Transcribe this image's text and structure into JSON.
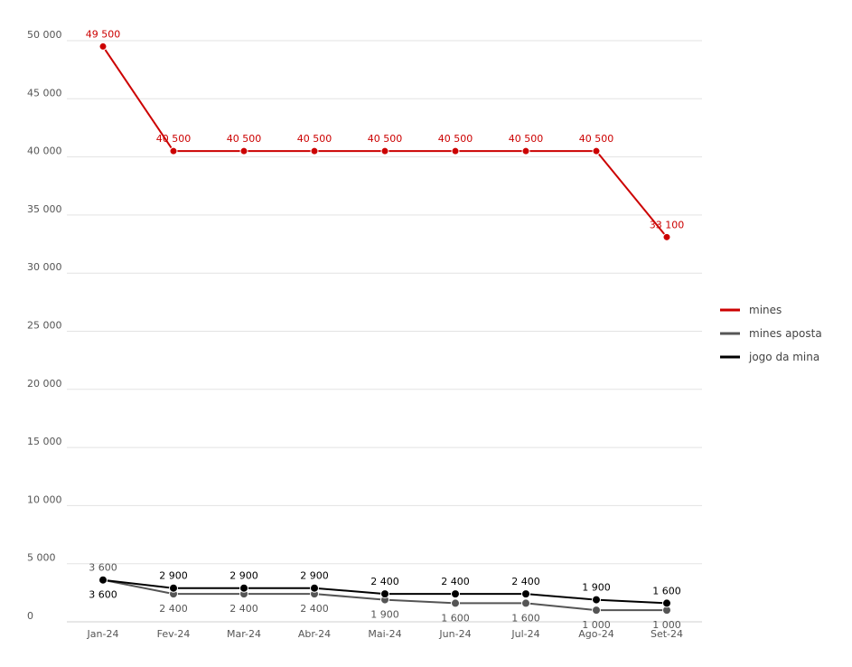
{
  "chart_data": {
    "type": "line",
    "categories": [
      "Jan-24",
      "Fev-24",
      "Mar-24",
      "Abr-24",
      "Mai-24",
      "Jun-24",
      "Jul-24",
      "Ago-24",
      "Set-24"
    ],
    "series": [
      {
        "name": "mines",
        "color": "#cc0000",
        "values": [
          49500,
          40500,
          40500,
          40500,
          40500,
          40500,
          40500,
          40500,
          33100
        ],
        "labels": [
          "49 500",
          "40 500",
          "40 500",
          "40 500",
          "40 500",
          "40 500",
          "40 500",
          "40 500",
          "33 100"
        ]
      },
      {
        "name": "mines aposta",
        "color": "#555555",
        "values": [
          3600,
          2400,
          2400,
          2400,
          1900,
          1600,
          1600,
          1000,
          1000
        ],
        "labels": [
          "3 600",
          "2 400",
          "2 400",
          "2 400",
          "1 900",
          "1 600",
          "1 600",
          "1 000",
          "1 000"
        ]
      },
      {
        "name": "jogo da mina",
        "color": "#000000",
        "values": [
          3600,
          2900,
          2900,
          2900,
          2400,
          2400,
          2400,
          1900,
          1600
        ],
        "labels": [
          "3 600",
          "2 900",
          "2 900",
          "2 900",
          "2 400",
          "2 400",
          "2 400",
          "1 900",
          "1 600"
        ]
      }
    ],
    "yticks": [
      0,
      5000,
      10000,
      15000,
      20000,
      25000,
      30000,
      35000,
      40000,
      45000,
      50000
    ],
    "ytick_labels": [
      "0",
      "5 000",
      "10 000",
      "15 000",
      "20 000",
      "25 000",
      "30 000",
      "35 000",
      "40 000",
      "45 000",
      "50 000"
    ],
    "ylim": [
      0,
      50000
    ],
    "grid": true,
    "legend": "right",
    "title": "",
    "xlabel": "",
    "ylabel": ""
  }
}
